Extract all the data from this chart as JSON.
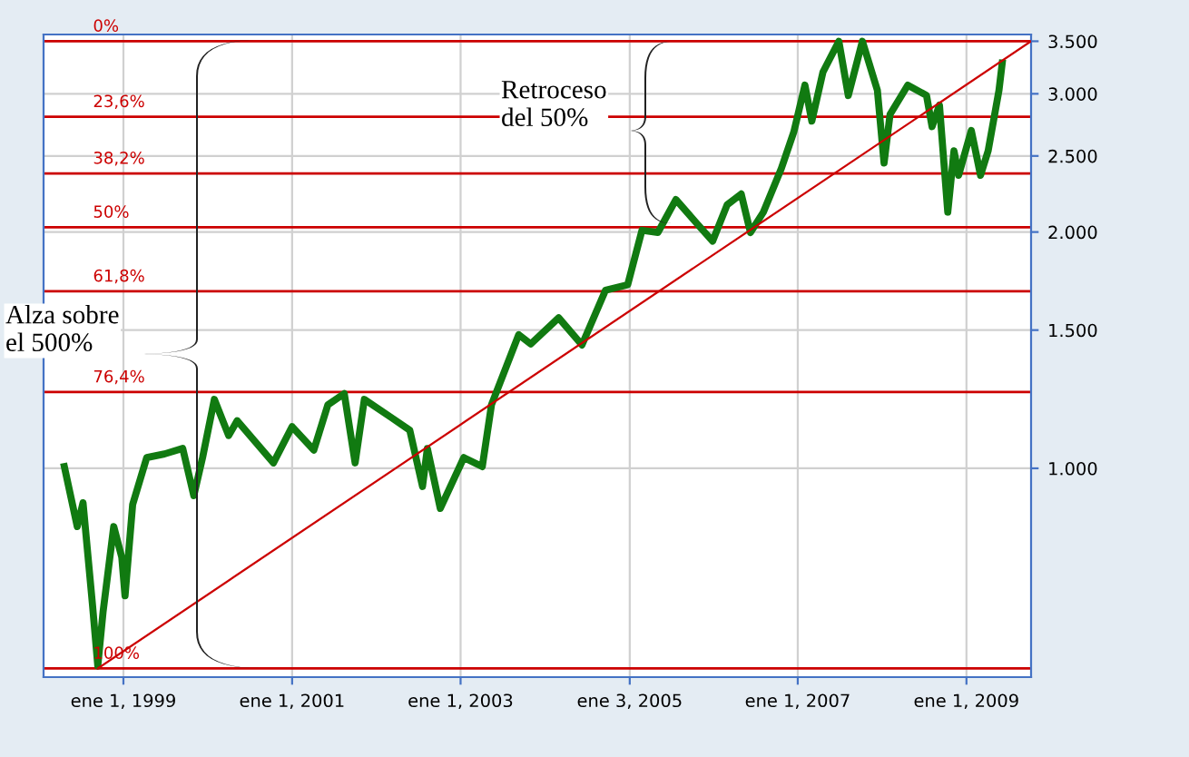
{
  "chart_data": {
    "type": "line",
    "log": "y",
    "grid": true,
    "line_style": "solid",
    "xlim": [
      "1998-01-20",
      "2009-10-08"
    ],
    "xticks": [
      {
        "value": "1999-01-01",
        "label": "ene 1, 1999"
      },
      {
        "value": "2001-01-01",
        "label": "ene 1, 2001"
      },
      {
        "value": "2003-01-01",
        "label": "ene 1, 2003"
      },
      {
        "value": "2005-01-03",
        "label": "ene 3, 2005"
      },
      {
        "value": "2007-01-01",
        "label": "ene 1, 2007"
      },
      {
        "value": "2009-01-01",
        "label": "ene 1, 2009"
      }
    ],
    "ylim": [
      542,
      3570
    ],
    "yticks": [
      {
        "value": 1000,
        "label": "1.000"
      },
      {
        "value": 1500,
        "label": "1.500"
      },
      {
        "value": 2000,
        "label": "2.000"
      },
      {
        "value": 2500,
        "label": "2.500"
      },
      {
        "value": 3000,
        "label": "3.000"
      },
      {
        "value": 3500,
        "label": "3.500"
      }
    ],
    "series": [
      {
        "color": "#117a11",
        "x": [
          "1998-04-20",
          "1998-06-15",
          "1998-07-10",
          "1998-08-20",
          "1998-09-12",
          "1998-10-05",
          "1998-11-20",
          "1998-12-25",
          "1999-01-08",
          "1999-02-10",
          "1999-04-12",
          "1999-06-28",
          "1999-09-15",
          "1999-11-02",
          "1999-12-10",
          "2000-01-30",
          "2000-04-01",
          "2000-05-08",
          "2000-10-12",
          "2001-01-01",
          "2001-04-05",
          "2001-06-05",
          "2001-08-15",
          "2001-10-01",
          "2001-11-10",
          "2002-03-06",
          "2002-05-26",
          "2002-07-20",
          "2002-08-10",
          "2002-10-05",
          "2003-01-15",
          "2003-04-05",
          "2003-05-15",
          "2003-09-10",
          "2003-11-01",
          "2004-03-01",
          "2004-06-10",
          "2004-09-20",
          "2004-12-25",
          "2005-02-25",
          "2005-05-05",
          "2005-07-22",
          "2005-10-20",
          "2005-12-28",
          "2006-03-01",
          "2006-05-01",
          "2006-06-10",
          "2006-08-05",
          "2006-10-22",
          "2006-12-15",
          "2007-02-01",
          "2007-03-03",
          "2007-04-20",
          "2007-06-28",
          "2007-08-08",
          "2007-10-08",
          "2007-12-12",
          "2008-01-10",
          "2008-02-05",
          "2008-04-22",
          "2008-07-12",
          "2008-08-05",
          "2008-09-06",
          "2008-10-12",
          "2008-11-08",
          "2008-11-28",
          "2009-01-22",
          "2009-03-03",
          "2009-04-05",
          "2009-05-22",
          "2009-06-05"
        ],
        "values": [
          1005,
          843,
          904,
          670,
          560,
          657,
          843,
          770,
          688,
          899,
          1032,
          1043,
          1060,
          923,
          1032,
          1224,
          1101,
          1150,
          1016,
          1130,
          1055,
          1205,
          1245,
          1016,
          1224,
          1161,
          1118,
          948,
          1060,
          889,
          1032,
          1005,
          1205,
          1480,
          1440,
          1555,
          1436,
          1686,
          1713,
          2010,
          1997,
          2200,
          2052,
          1947,
          2166,
          2236,
          1997,
          2120,
          2410,
          2683,
          3077,
          2769,
          3196,
          3500,
          2985,
          3500,
          3032,
          2449,
          2824,
          3077,
          2985,
          2725,
          2902,
          2120,
          2538,
          2362,
          2694,
          2362,
          2538,
          3032,
          3283
        ]
      },
      {
        "type": "line",
        "color": "#cc0000",
        "x": [
          "1998-09-12",
          "2009-10-08"
        ],
        "values": [
          556,
          3500
        ]
      }
    ],
    "ref_lines": [
      {
        "axis": "y",
        "value": 3500,
        "color": "#cc0000"
      },
      {
        "axis": "y",
        "value": 2805,
        "color": "#cc0000"
      },
      {
        "axis": "y",
        "value": 2375,
        "color": "#cc0000"
      },
      {
        "axis": "y",
        "value": 2028,
        "color": "#cc0000"
      },
      {
        "axis": "y",
        "value": 1681,
        "color": "#cc0000"
      },
      {
        "axis": "y",
        "value": 1251,
        "color": "#cc0000"
      },
      {
        "axis": "y",
        "value": 556,
        "color": "#cc0000"
      }
    ],
    "annotations": [
      "Alza sobre\nel 500%",
      "Retroceso\ndel 50%",
      {
        "text": "0%",
        "x": "1998-08-22",
        "y": 3500
      },
      {
        "text": "23,6%",
        "x": "1998-08-22",
        "y": 2805
      },
      {
        "text": "38,2%",
        "x": "1998-08-22",
        "y": 2375
      },
      {
        "text": "50%",
        "x": "1998-08-22",
        "y": 2028
      },
      {
        "text": "61,8%",
        "x": "1998-08-22",
        "y": 1681
      },
      {
        "text": "76,4%",
        "x": "1998-08-22",
        "y": 1251
      },
      {
        "text": "100%",
        "x": "1998-08-22",
        "y": 556
      }
    ]
  }
}
